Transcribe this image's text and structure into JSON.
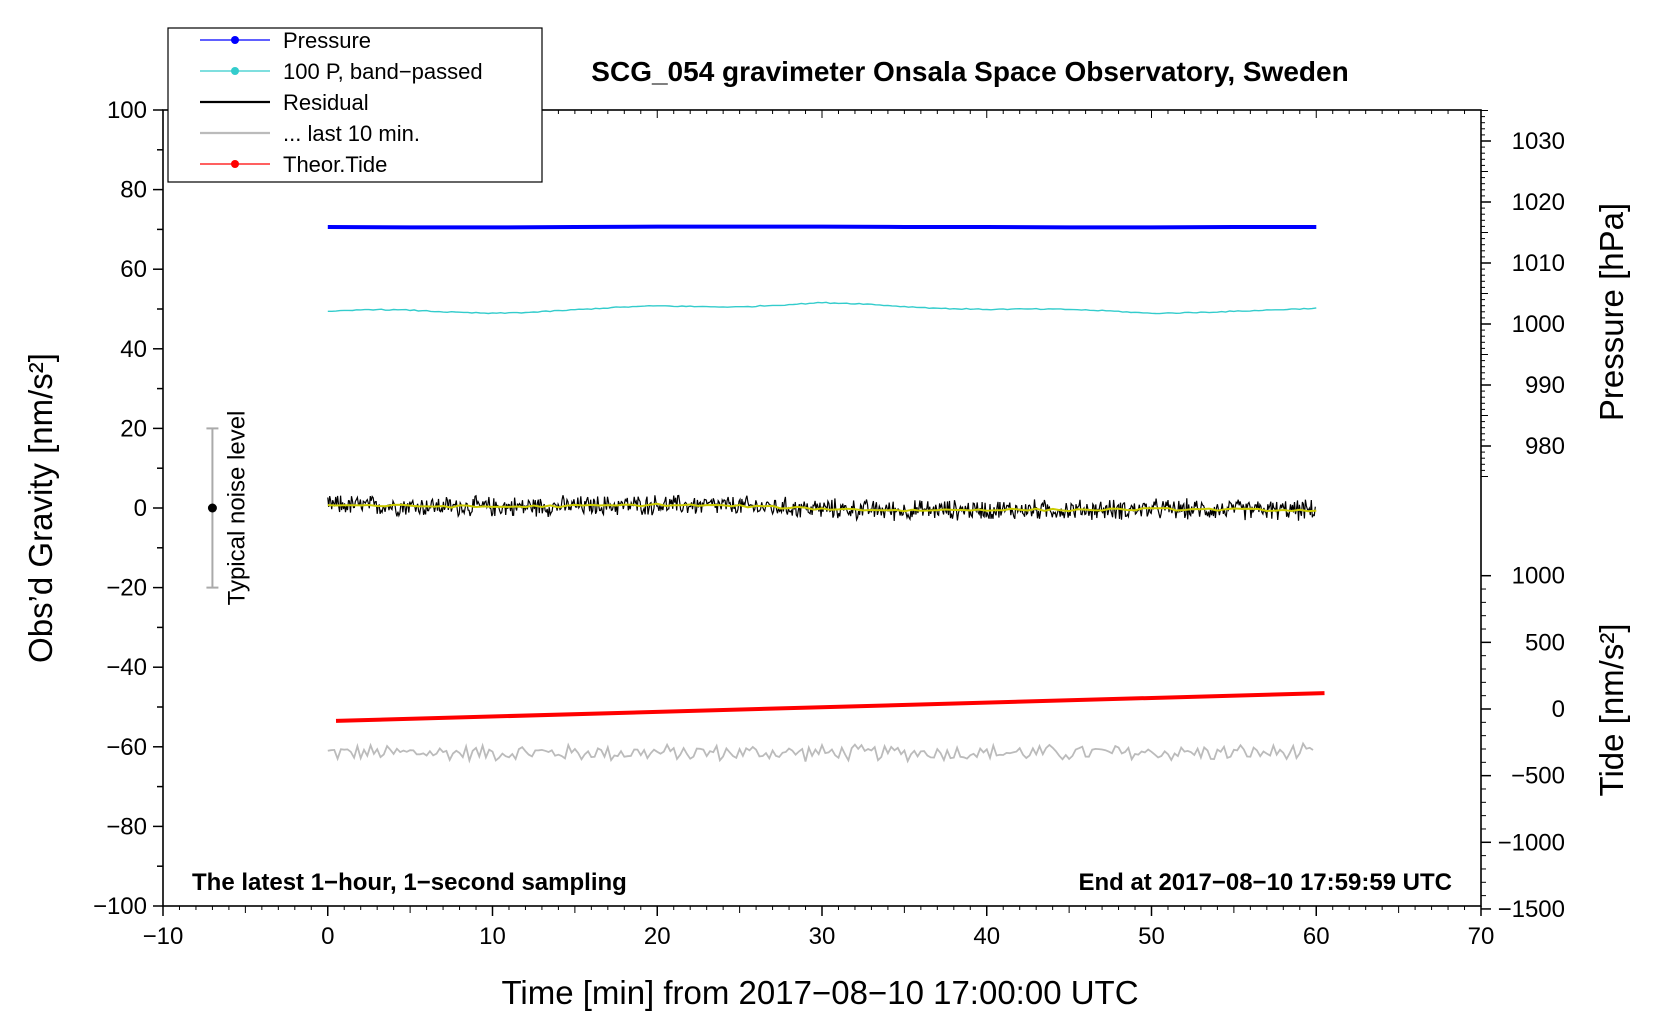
{
  "chart_data": {
    "type": "line",
    "title": "SCG_054 gravimeter Onsala Space Observatory, Sweden",
    "xlabel": "Time [min] from 2017−08−10 17:00:00 UTC",
    "ylabel_left": "Obs’d Gravity [nm/s²]",
    "ylabel_pressure": "Pressure [hPa]",
    "ylabel_tide": "Tide [nm/s²]",
    "xlim": [
      -10,
      70
    ],
    "ylim": [
      -100,
      100
    ],
    "pressure_ticks": [
      980,
      990,
      1000,
      1010,
      1020,
      1030
    ],
    "tide_ticks": [
      -1500,
      -1000,
      -500,
      0,
      500,
      1000
    ],
    "note_left": "The latest 1−hour, 1−second sampling",
    "note_right": "End at 2017−08−10 17:59:59 UTC",
    "noise_bar": {
      "label": "Typical noise level",
      "x": -7,
      "center": 0,
      "low": -20,
      "high": 20
    },
    "colors": {
      "pressure": "#0000ff",
      "band": "#33cccc",
      "residual": "#000000",
      "last10": "#bbbbbb",
      "tide": "#ff0000",
      "smooth": "#cccc00"
    },
    "legend": [
      {
        "label": "Pressure",
        "color": "#0000ff",
        "marker": true
      },
      {
        "label": "100 P, band−passed",
        "color": "#33cccc",
        "marker": true
      },
      {
        "label": "Residual",
        "color": "#000000",
        "marker": false
      },
      {
        "label": "... last 10 min.",
        "color": "#bbbbbb",
        "marker": false
      },
      {
        "label": "Theor.Tide",
        "color": "#ff0000",
        "marker": true
      }
    ],
    "series": [
      {
        "name": "Pressure",
        "x": [
          0,
          5,
          10,
          15,
          20,
          25,
          30,
          35,
          40,
          45,
          50,
          55,
          60
        ],
        "values": [
          70.6,
          70.5,
          70.5,
          70.6,
          70.7,
          70.7,
          70.7,
          70.6,
          70.6,
          70.5,
          70.5,
          70.6,
          70.6
        ]
      },
      {
        "name": "100 P, band−passed",
        "x": [
          0,
          2.5,
          5,
          7.5,
          10,
          12.5,
          15,
          17.5,
          20,
          22.5,
          25,
          27.5,
          30,
          32.5,
          35,
          37.5,
          40,
          42.5,
          45,
          47.5,
          50,
          52.5,
          55,
          57.5,
          60
        ],
        "values": [
          49.3,
          49.9,
          49.7,
          49.2,
          48.9,
          49.2,
          49.8,
          50.4,
          50.8,
          50.6,
          50.5,
          51.0,
          51.6,
          51.3,
          50.6,
          50.1,
          49.9,
          50.0,
          49.9,
          49.5,
          48.9,
          49.1,
          49.4,
          49.8,
          50.2
        ]
      },
      {
        "name": "Residual",
        "x": [
          0,
          5,
          10,
          15,
          20,
          25,
          30,
          35,
          40,
          45,
          50,
          55,
          60
        ],
        "values": [
          0.8,
          0.5,
          0.3,
          0.5,
          0.8,
          0.5,
          -0.2,
          -0.6,
          -0.4,
          -0.5,
          -0.3,
          -0.4,
          -0.6
        ],
        "noise_amplitude": 2.5
      },
      {
        "name": "... last 10 min.",
        "x": [
          0,
          60
        ],
        "values": [
          -61.5,
          -61.5
        ],
        "noise_amplitude": 2.0
      },
      {
        "name": "Theor.Tide",
        "x": [
          0.5,
          60.5
        ],
        "values": [
          -53.5,
          -46.5
        ]
      }
    ]
  }
}
